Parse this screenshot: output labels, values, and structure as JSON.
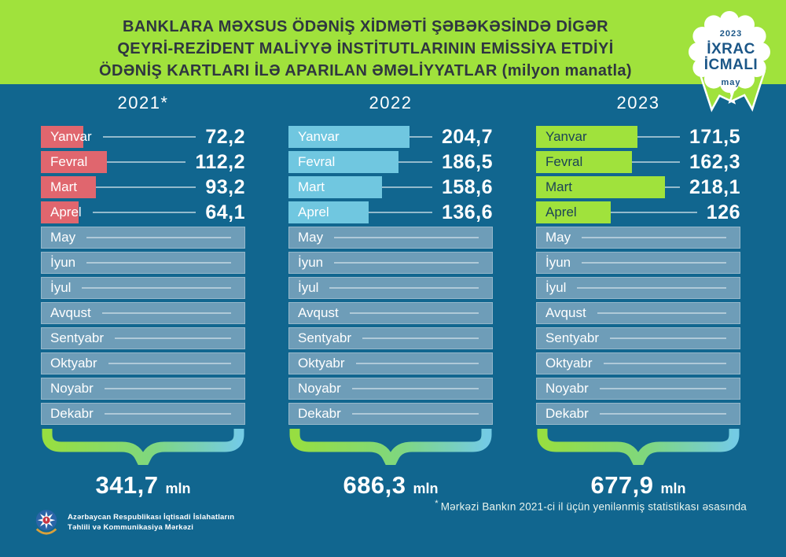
{
  "header": {
    "title_lines": [
      "BANKLARA MƏXSUS ÖDƏNİŞ XİDMƏTİ ŞƏBƏKƏSİNDƏ DİGƏR",
      "QEYRİ-REZİDENT MALİYYƏ İNSTİTUTLARININ EMİSSİYA ETDİYİ",
      "ÖDƏNİŞ KARTLARI İLƏ APARILAN ƏMƏLİYYATLAR (milyon manatla)"
    ],
    "bg_color": "#A0E23C",
    "text_color": "#2F3640"
  },
  "badge": {
    "year": "2023",
    "title_line1": "İXRAC",
    "title_line2": "İCMALI",
    "month": "may",
    "text_color": "#1B5687",
    "ribbon_color": "#A0E23C"
  },
  "chart_data": {
    "type": "bar",
    "title": "Banklara məxsus ödəniş xidməti şəbəkəsində digər qeyri-rezident maliyyə institutlarının emissiya etdiyi ödəniş kartları ilə aparılan əməliyyatlar",
    "unit_label": "milyon manatla",
    "orientation": "horizontal",
    "axis_max": 230,
    "grid": false,
    "legend_position": "none",
    "categories": [
      "Yanvar",
      "Fevral",
      "Mart",
      "Aprel",
      "May",
      "İyun",
      "İyul",
      "Avqust",
      "Sentyabr",
      "Oktyabr",
      "Noyabr",
      "Dekabr"
    ],
    "series": [
      {
        "name": "2021",
        "year_label": "2021*",
        "bar_color": "#E0666E",
        "label_color": "#FFFFFF",
        "values": [
          72.2,
          112.2,
          93.2,
          64.1,
          null,
          null,
          null,
          null,
          null,
          null,
          null,
          null
        ],
        "display_values": [
          "72,2",
          "112,2",
          "93,2",
          "64,1"
        ],
        "total_value": 341.7,
        "total_display": "341,7"
      },
      {
        "name": "2022",
        "year_label": "2022",
        "bar_color": "#70C7E0",
        "label_color": "#FFFFFF",
        "values": [
          204.7,
          186.5,
          158.6,
          136.6,
          null,
          null,
          null,
          null,
          null,
          null,
          null,
          null
        ],
        "display_values": [
          "204,7",
          "186,5",
          "158,6",
          "136,6"
        ],
        "total_value": 686.3,
        "total_display": "686,3"
      },
      {
        "name": "2023",
        "year_label": "2023",
        "bar_color": "#A0E23C",
        "label_color": "#1C4356",
        "values": [
          171.5,
          162.3,
          218.1,
          126,
          null,
          null,
          null,
          null,
          null,
          null,
          null,
          null
        ],
        "display_values": [
          "171,5",
          "162,3",
          "218,1",
          "126"
        ],
        "total_value": 677.9,
        "total_display": "677,9"
      }
    ],
    "value_suffix": "mln",
    "empty_bar_color": "#6E9DB8",
    "background_color": "#11668F",
    "brace_gradient": [
      "#97DE41",
      "#7FD77F",
      "#74CBE4"
    ]
  },
  "footnote": {
    "marker": "*",
    "text": "Mərkəzi Bankın 2021-ci il üçün yenilənmiş statistikası əsasında"
  },
  "logo": {
    "org_line1": "Azərbaycan Respublikası İqtisadi İslahatların",
    "org_line2": "Təhlili və Kommunikasiya Mərkəzi"
  }
}
